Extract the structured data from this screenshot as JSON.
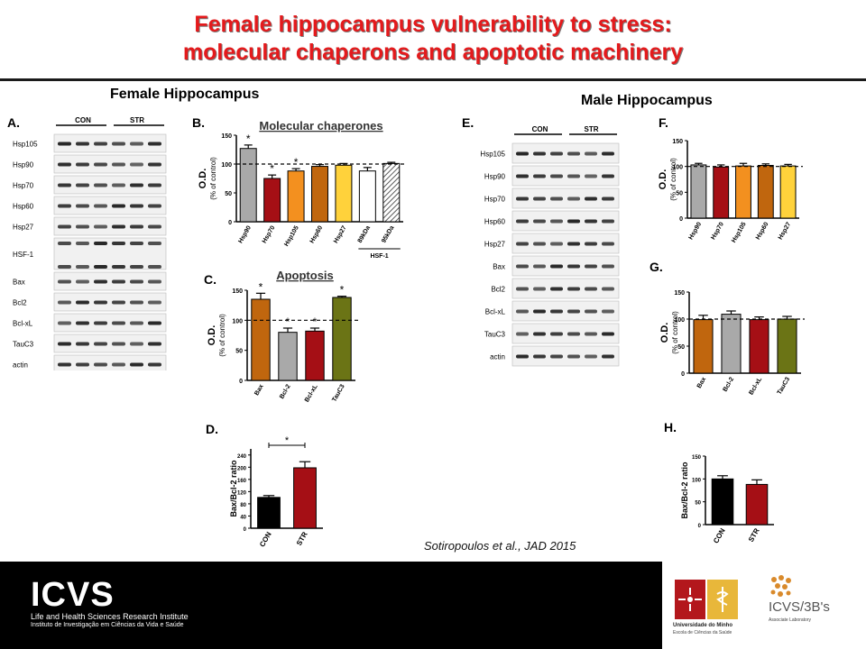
{
  "title": {
    "line1": "Female hippocampus vulnerability to stress:",
    "line2": "molecular chaperons and apoptotic machinery"
  },
  "female_heading": "Female Hippocampus",
  "male_heading": "Male Hippocampus",
  "citation": "Sotiropoulos et al., JAD 2015",
  "panels": {
    "A": {
      "label": "A.",
      "groups": [
        "CON",
        "STR"
      ],
      "bands": [
        "Hsp105",
        "Hsp90",
        "Hsp70",
        "Hsp60",
        "Hsp27",
        "HSF-1",
        "Bax",
        "Bcl2",
        "Bcl-xL",
        "TauC3",
        "actin"
      ]
    },
    "E": {
      "label": "E.",
      "groups": [
        "CON",
        "STR"
      ],
      "bands": [
        "Hsp105",
        "Hsp90",
        "Hsp70",
        "Hsp60",
        "Hsp27",
        "Bax",
        "Bcl2",
        "Bcl-xL",
        "TauC3",
        "actin"
      ]
    },
    "B": {
      "label": "B."
    },
    "C": {
      "label": "C."
    },
    "D": {
      "label": "D."
    },
    "F": {
      "label": "F."
    },
    "G": {
      "label": "G."
    },
    "H": {
      "label": "H."
    }
  },
  "colors": {
    "title_red": "#e41a1c",
    "gray": "#a9a9a9",
    "red": "#a50f15",
    "orange": "#e6801f",
    "brown": "#c0660e",
    "yellow": "#ffd23b",
    "olive": "#6b7415",
    "black": "#000000"
  },
  "chart_data": [
    {
      "id": "B",
      "type": "bar",
      "title": "Molecular chaperones",
      "ylabel": "O.D.",
      "ylabel2": "(% of control)",
      "ylim": [
        0,
        150
      ],
      "yticks": [
        0,
        50,
        100,
        150
      ],
      "categories": [
        "Hsp90",
        "Hsp70",
        "Hsp105",
        "Hsp60",
        "Hsp27",
        "89kDa",
        "95kDa"
      ],
      "values": [
        127,
        75,
        88,
        96,
        98,
        88,
        101
      ],
      "errors": [
        6,
        6,
        4,
        3,
        3,
        6,
        2
      ],
      "colors": [
        "#a9a9a9",
        "#a50f15",
        "#f3901f",
        "#c0660e",
        "#ffd23b",
        "#ffffff",
        "#ffffff"
      ],
      "hatched": [
        false,
        false,
        false,
        false,
        false,
        false,
        true
      ],
      "significant": [
        true,
        true,
        true,
        false,
        false,
        false,
        false
      ],
      "group_label": "HSF-1",
      "reference_line": 100
    },
    {
      "id": "C",
      "type": "bar",
      "title": "Apoptosis",
      "ylabel": "O.D.",
      "ylabel2": "(% of control)",
      "ylim": [
        0,
        150
      ],
      "yticks": [
        0,
        50,
        100,
        150
      ],
      "categories": [
        "Bax",
        "Bcl-2",
        "Bcl-xL",
        "TauC3"
      ],
      "values": [
        135,
        80,
        82,
        138
      ],
      "errors": [
        10,
        7,
        5,
        2
      ],
      "colors": [
        "#c0660e",
        "#a9a9a9",
        "#a50f15",
        "#6b7415"
      ],
      "significant": [
        true,
        true,
        true,
        true
      ],
      "reference_line": 100
    },
    {
      "id": "D",
      "type": "bar",
      "title": "",
      "ylabel": "Bax/Bcl-2 ratio",
      "ylim": [
        0,
        260
      ],
      "yticks": [
        0,
        40,
        80,
        120,
        160,
        200,
        240
      ],
      "categories": [
        "CON",
        "STR"
      ],
      "values": [
        101,
        198
      ],
      "errors": [
        6,
        20
      ],
      "colors": [
        "#000000",
        "#a50f15"
      ],
      "comparison": "*"
    },
    {
      "id": "F",
      "type": "bar",
      "title": "",
      "ylabel": "O.D.",
      "ylabel2": "(% of control)",
      "ylim": [
        0,
        150
      ],
      "yticks": [
        0,
        50,
        100,
        150
      ],
      "categories": [
        "Hsp90",
        "Hsp70",
        "Hsp105",
        "Hsp60",
        "Hsp27"
      ],
      "values": [
        103,
        99,
        101,
        102,
        101
      ],
      "errors": [
        3,
        4,
        5,
        3,
        3
      ],
      "colors": [
        "#a9a9a9",
        "#a50f15",
        "#f3901f",
        "#c0660e",
        "#ffd23b"
      ],
      "reference_line": 100
    },
    {
      "id": "G",
      "type": "bar",
      "title": "",
      "ylabel": "O.D.",
      "ylabel2": "(% of control)",
      "ylim": [
        0,
        150
      ],
      "yticks": [
        0,
        50,
        100,
        150
      ],
      "categories": [
        "Bax",
        "Bcl-2",
        "Bcl-xL",
        "TauC3"
      ],
      "values": [
        99,
        109,
        99,
        100
      ],
      "errors": [
        8,
        6,
        5,
        5
      ],
      "colors": [
        "#c0660e",
        "#a9a9a9",
        "#a50f15",
        "#6b7415"
      ],
      "reference_line": 100
    },
    {
      "id": "H",
      "type": "bar",
      "title": "",
      "ylabel": "Bax/Bcl-2 ratio",
      "ylim": [
        0,
        150
      ],
      "yticks": [
        0,
        50,
        100,
        150
      ],
      "categories": [
        "CON",
        "STR"
      ],
      "values": [
        100,
        88
      ],
      "errors": [
        7,
        10
      ],
      "colors": [
        "#000000",
        "#a50f15"
      ]
    }
  ],
  "footer": {
    "icvs_logo": "ICVS",
    "icvs_line1": "Life and Health Sciences Research Institute",
    "icvs_line2": "Instituto de Investigação em Ciências da Vida e Saúde",
    "um_line1": "Universidade do Minho",
    "um_line2": "Escola de Ciências da Saúde",
    "i3b_text": "ICVS/3B's",
    "i3b_sub": "Associate Laboratory"
  }
}
